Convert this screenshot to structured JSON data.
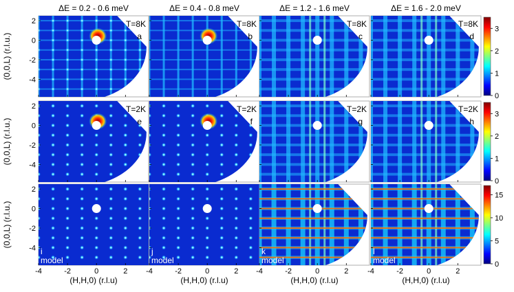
{
  "chart_data": {
    "type": "heatmap",
    "column_titles": [
      "ΔE = 0.2 - 0.6 meV",
      "ΔE = 0.4 - 0.8 meV",
      "ΔE = 1.2 - 1.6 meV",
      "ΔE = 1.6 - 2.0 meV"
    ],
    "xlabel": "(H,H,0) (r.l.u)",
    "ylabel": "(0,0,L) (r.l.u.)",
    "x_ticks": [
      -4,
      -2,
      0,
      2
    ],
    "y_ticks": [
      2,
      0,
      -2,
      -4
    ],
    "xlim": [
      -4,
      3.6
    ],
    "ylim": [
      -5.8,
      2.5
    ],
    "colormap": [
      "#00007f",
      "#0000ff",
      "#0080ff",
      "#00ffff",
      "#80ff80",
      "#ffff00",
      "#ff8000",
      "#ff0000",
      "#800000"
    ],
    "rows": [
      {
        "colorbar": {
          "ticks": [
            0,
            1,
            2,
            3
          ],
          "range": [
            0,
            3.5
          ]
        },
        "panels": [
          {
            "letter": "a",
            "temperature": "T=8K",
            "model": "",
            "feature": "lines+spots"
          },
          {
            "letter": "b",
            "temperature": "T=8K",
            "model": "",
            "feature": "lines"
          },
          {
            "letter": "c",
            "temperature": "T=8K",
            "model": "",
            "feature": "rods"
          },
          {
            "letter": "d",
            "temperature": "T=8K",
            "model": "",
            "feature": "rods"
          }
        ]
      },
      {
        "colorbar": {
          "ticks": [
            0,
            1,
            2,
            3
          ],
          "range": [
            0,
            3.5
          ]
        },
        "panels": [
          {
            "letter": "e",
            "temperature": "T=2K",
            "model": "",
            "feature": "spots"
          },
          {
            "letter": "f",
            "temperature": "T=2K",
            "model": "",
            "feature": "spots"
          },
          {
            "letter": "g",
            "temperature": "T=2K",
            "model": "",
            "feature": "rods"
          },
          {
            "letter": "h",
            "temperature": "T=2K",
            "model": "",
            "feature": "rods"
          }
        ]
      },
      {
        "colorbar": {
          "ticks": [
            0,
            5,
            10,
            15
          ],
          "range": [
            0,
            17
          ]
        },
        "panels": [
          {
            "letter": "i",
            "temperature": "",
            "model": "model",
            "feature": "model-spots"
          },
          {
            "letter": "j",
            "temperature": "",
            "model": "model",
            "feature": "model-spots"
          },
          {
            "letter": "k",
            "temperature": "",
            "model": "model",
            "feature": "model-rods"
          },
          {
            "letter": "l",
            "temperature": "",
            "model": "model",
            "feature": "model-rods"
          }
        ]
      }
    ]
  }
}
